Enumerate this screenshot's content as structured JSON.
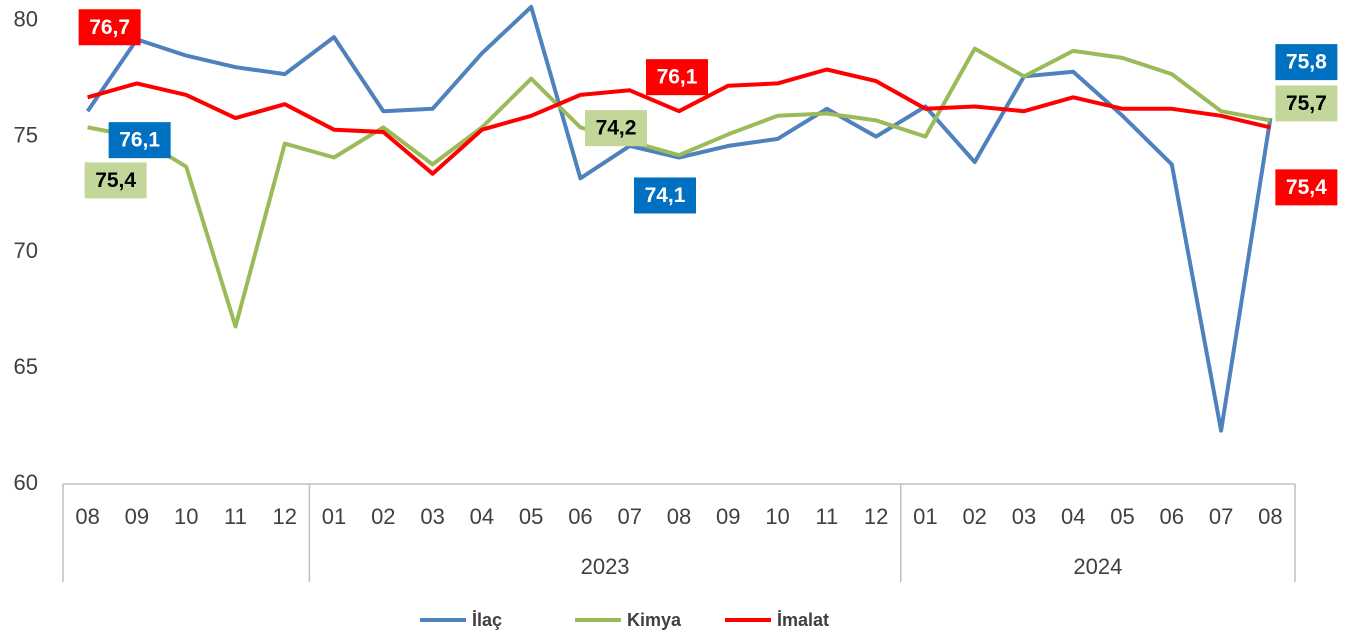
{
  "chart_data": {
    "type": "line",
    "groups": [
      {
        "label": null,
        "categories": [
          "08",
          "09",
          "10",
          "11",
          "12"
        ]
      },
      {
        "label": "2023",
        "categories": [
          "01",
          "02",
          "03",
          "04",
          "05",
          "06",
          "07",
          "08",
          "09",
          "10",
          "11",
          "12"
        ]
      },
      {
        "label": "2024",
        "categories": [
          "01",
          "02",
          "03",
          "04",
          "05",
          "06",
          "07",
          "08"
        ]
      }
    ],
    "series": [
      {
        "name": "İlaç",
        "color": "#4f81bd",
        "label_color": "#0070c0",
        "label_text_color": "#ffffff",
        "values": [
          76.1,
          79.2,
          78.5,
          78.0,
          77.7,
          79.3,
          76.1,
          76.2,
          78.6,
          80.6,
          73.2,
          74.6,
          74.1,
          74.6,
          74.9,
          76.2,
          75.0,
          76.3,
          73.9,
          77.6,
          77.8,
          75.9,
          73.8,
          62.3,
          75.8
        ],
        "value_labels": [
          "76,1",
          null,
          null,
          null,
          null,
          null,
          null,
          null,
          null,
          null,
          null,
          null,
          "74,1",
          null,
          null,
          null,
          null,
          null,
          null,
          null,
          null,
          null,
          null,
          null,
          "75,8"
        ]
      },
      {
        "name": "Kimya",
        "color": "#9bbb59",
        "label_color": "#c4d79b",
        "label_text_color": "#000000",
        "values": [
          75.4,
          75.0,
          73.7,
          66.8,
          74.7,
          74.1,
          75.4,
          73.8,
          75.4,
          77.5,
          75.4,
          74.8,
          74.2,
          75.1,
          75.9,
          76.0,
          75.7,
          75.0,
          78.8,
          77.6,
          78.7,
          78.4,
          77.7,
          76.1,
          75.7
        ],
        "value_labels": [
          "75,4",
          null,
          null,
          null,
          null,
          null,
          null,
          null,
          null,
          null,
          null,
          null,
          "74,2",
          null,
          null,
          null,
          null,
          null,
          null,
          null,
          null,
          null,
          null,
          null,
          "75,7"
        ]
      },
      {
        "name": "İmalat",
        "color": "#ff0000",
        "label_color": "#ff0000",
        "label_text_color": "#ffffff",
        "values": [
          76.7,
          77.3,
          76.8,
          75.8,
          76.4,
          75.3,
          75.2,
          73.4,
          75.3,
          75.9,
          76.8,
          77.0,
          76.1,
          77.2,
          77.3,
          77.9,
          77.4,
          76.2,
          76.3,
          76.1,
          76.7,
          76.2,
          76.2,
          75.9,
          75.4
        ],
        "value_labels": [
          "76,7",
          null,
          null,
          null,
          null,
          null,
          null,
          null,
          null,
          null,
          null,
          null,
          "76,1",
          null,
          null,
          null,
          null,
          null,
          null,
          null,
          null,
          null,
          null,
          null,
          "75,4"
        ]
      }
    ],
    "ylim": [
      60,
      80.9
    ],
    "yticks": [
      60,
      65,
      70,
      75,
      80
    ],
    "grid": false,
    "legend": "bottom"
  }
}
